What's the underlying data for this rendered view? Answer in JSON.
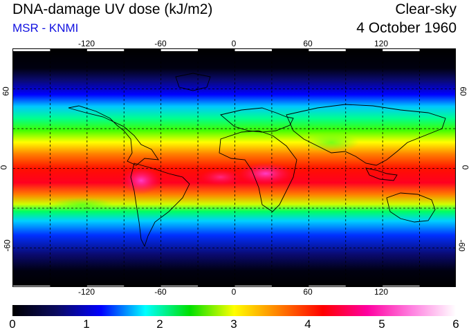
{
  "header": {
    "title": "DNA-damage UV dose (kJ/m2)",
    "credit": "MSR - KNMI",
    "mode": "Clear-sky",
    "date": "4 October 1960"
  },
  "axes": {
    "lon_ticks": [
      "-120",
      "-60",
      "0",
      "60",
      "120"
    ],
    "lat_ticks": [
      "60",
      "0",
      "-60"
    ]
  },
  "colorbar": {
    "labels": [
      "0",
      "1",
      "2",
      "3",
      "4",
      "5",
      "6"
    ],
    "min": 0,
    "max": 6,
    "stops": [
      "#000000",
      "#0a0a60",
      "#0000ff",
      "#00ffff",
      "#00e000",
      "#ffff00",
      "#ff8000",
      "#ff0000",
      "#ff00a0",
      "#ff80e0",
      "#ffffff"
    ]
  },
  "map": {
    "background": "#000000",
    "graticule_style": "dashed",
    "graticule_lon": [
      -150,
      -120,
      -90,
      -60,
      -30,
      0,
      30,
      60,
      90,
      120,
      150
    ],
    "graticule_lat": [
      60,
      30,
      0,
      -30,
      -60
    ]
  }
}
